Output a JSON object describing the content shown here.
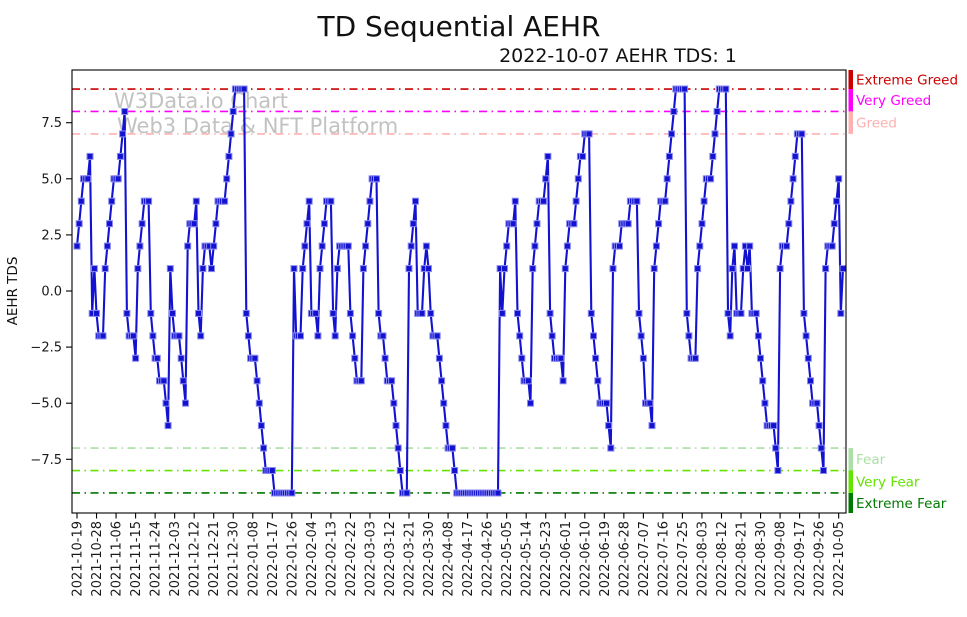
{
  "title": "TD Sequential AEHR",
  "subtitle": "2022-10-07 AEHR TDS: 1",
  "watermark": {
    "line1": "W3Data.io Chart",
    "line2": "Web3 Data & NFT Platform"
  },
  "chart_data": {
    "type": "line",
    "title": "TD Sequential AEHR",
    "subtitle": "2022-10-07 AEHR TDS: 1",
    "ylabel": "AEHR TDS",
    "series_name": "AEHR TDS",
    "marker": "square",
    "line_color": "#1212d0",
    "marker_edge_color": "#8a8af0",
    "grid": false,
    "ylim": [
      -9.9,
      9.85
    ],
    "y_ticks": [
      7.5,
      5.0,
      2.5,
      0.0,
      -2.5,
      -5.0,
      -7.5
    ],
    "x_start": "2021-10-19",
    "x_end": "2022-10-07",
    "x_tick_interval_days": 9,
    "x_tick_labels": [
      "2021-10-19",
      "2021-10-28",
      "2021-11-06",
      "2021-11-15",
      "2021-11-24",
      "2021-12-03",
      "2021-12-12",
      "2021-12-21",
      "2021-12-30",
      "2022-01-08",
      "2022-01-17",
      "2022-01-26",
      "2022-02-04",
      "2022-02-13",
      "2022-02-22",
      "2022-03-03",
      "2022-03-12",
      "2022-03-21",
      "2022-03-30",
      "2022-04-08",
      "2022-04-17",
      "2022-04-26",
      "2022-05-05",
      "2022-05-14",
      "2022-05-23",
      "2022-06-01",
      "2022-06-10",
      "2022-06-19",
      "2022-06-28",
      "2022-07-07",
      "2022-07-16",
      "2022-07-25",
      "2022-08-03",
      "2022-08-12",
      "2022-08-21",
      "2022-08-30",
      "2022-09-08",
      "2022-09-17",
      "2022-09-26",
      "2022-10-05"
    ],
    "thresholds": [
      {
        "label": "Extreme Greed",
        "value": 9,
        "color": "#cc0000"
      },
      {
        "label": "Very Greed",
        "value": 8,
        "color": "#ff00ff"
      },
      {
        "label": "Greed",
        "value": 7,
        "color": "#ffb0b0"
      },
      {
        "label": "Fear",
        "value": -7,
        "color": "#aadfa5"
      },
      {
        "label": "Very Fear",
        "value": -8,
        "color": "#63e300"
      },
      {
        "label": "Extreme Fear",
        "value": -9,
        "color": "#007a00"
      }
    ],
    "values": [
      2,
      3,
      4,
      5,
      5,
      5,
      6,
      -1,
      1,
      -1,
      -2,
      -2,
      -2,
      1,
      2,
      3,
      4,
      5,
      5,
      5,
      6,
      7,
      8,
      -1,
      -2,
      -2,
      -2,
      -3,
      1,
      2,
      3,
      4,
      4,
      4,
      -1,
      -2,
      -3,
      -3,
      -4,
      -4,
      -4,
      -5,
      -6,
      1,
      -1,
      -2,
      -2,
      -2,
      -3,
      -4,
      -5,
      2,
      3,
      3,
      3,
      4,
      -1,
      -2,
      1,
      2,
      2,
      2,
      1,
      2,
      3,
      4,
      4,
      4,
      4,
      5,
      6,
      7,
      8,
      9,
      9,
      9,
      9,
      9,
      -1,
      -2,
      -3,
      -3,
      -3,
      -4,
      -5,
      -6,
      -7,
      -8,
      -8,
      -8,
      -8,
      -9,
      -9,
      -9,
      -9,
      -9,
      -9,
      -9,
      -9,
      -9,
      1,
      -2,
      -2,
      -2,
      1,
      2,
      3,
      4,
      -1,
      -1,
      -1,
      -2,
      1,
      2,
      3,
      4,
      4,
      4,
      -1,
      -2,
      1,
      2,
      2,
      2,
      2,
      2,
      -1,
      -2,
      -3,
      -4,
      -4,
      -4,
      1,
      2,
      3,
      4,
      5,
      5,
      5,
      -1,
      -2,
      -2,
      -3,
      -4,
      -4,
      -4,
      -5,
      -6,
      -7,
      -8,
      -9,
      -9,
      -9,
      1,
      2,
      3,
      4,
      -1,
      -1,
      -1,
      1,
      2,
      1,
      -1,
      -2,
      -2,
      -2,
      -3,
      -4,
      -5,
      -6,
      -7,
      -7,
      -7,
      -8,
      -9,
      -9,
      -9,
      -9,
      -9,
      -9,
      -9,
      -9,
      -9,
      -9,
      -9,
      -9,
      -9,
      -9,
      -9,
      -9,
      -9,
      -9,
      -9,
      -9,
      1,
      -1,
      1,
      2,
      3,
      3,
      3,
      4,
      -1,
      -2,
      -3,
      -4,
      -4,
      -4,
      -5,
      1,
      2,
      3,
      4,
      4,
      4,
      5,
      6,
      -1,
      -2,
      -3,
      -3,
      -3,
      -3,
      -4,
      1,
      2,
      3,
      3,
      3,
      4,
      5,
      6,
      6,
      7,
      7,
      7,
      -1,
      -2,
      -3,
      -4,
      -5,
      -5,
      -5,
      -5,
      -6,
      -7,
      1,
      2,
      2,
      2,
      3,
      3,
      3,
      3,
      4,
      4,
      4,
      4,
      -1,
      -2,
      -3,
      -5,
      -5,
      -5,
      -6,
      1,
      2,
      3,
      4,
      4,
      4,
      5,
      6,
      7,
      8,
      9,
      9,
      9,
      9,
      9,
      -1,
      -2,
      -3,
      -3,
      -3,
      1,
      2,
      3,
      4,
      5,
      5,
      5,
      6,
      7,
      8,
      9,
      9,
      9,
      9,
      -1,
      -2,
      1,
      2,
      -1,
      -1,
      -1,
      1,
      2,
      1,
      2,
      -1,
      -1,
      -1,
      -2,
      -3,
      -4,
      -5,
      -6,
      -6,
      -6,
      -6,
      -7,
      -8,
      1,
      2,
      2,
      2,
      3,
      4,
      5,
      6,
      7,
      7,
      7,
      -1,
      -2,
      -3,
      -4,
      -5,
      -5,
      -5,
      -6,
      -7,
      -8,
      1,
      2,
      2,
      2,
      3,
      4,
      5,
      -1,
      1
    ]
  }
}
